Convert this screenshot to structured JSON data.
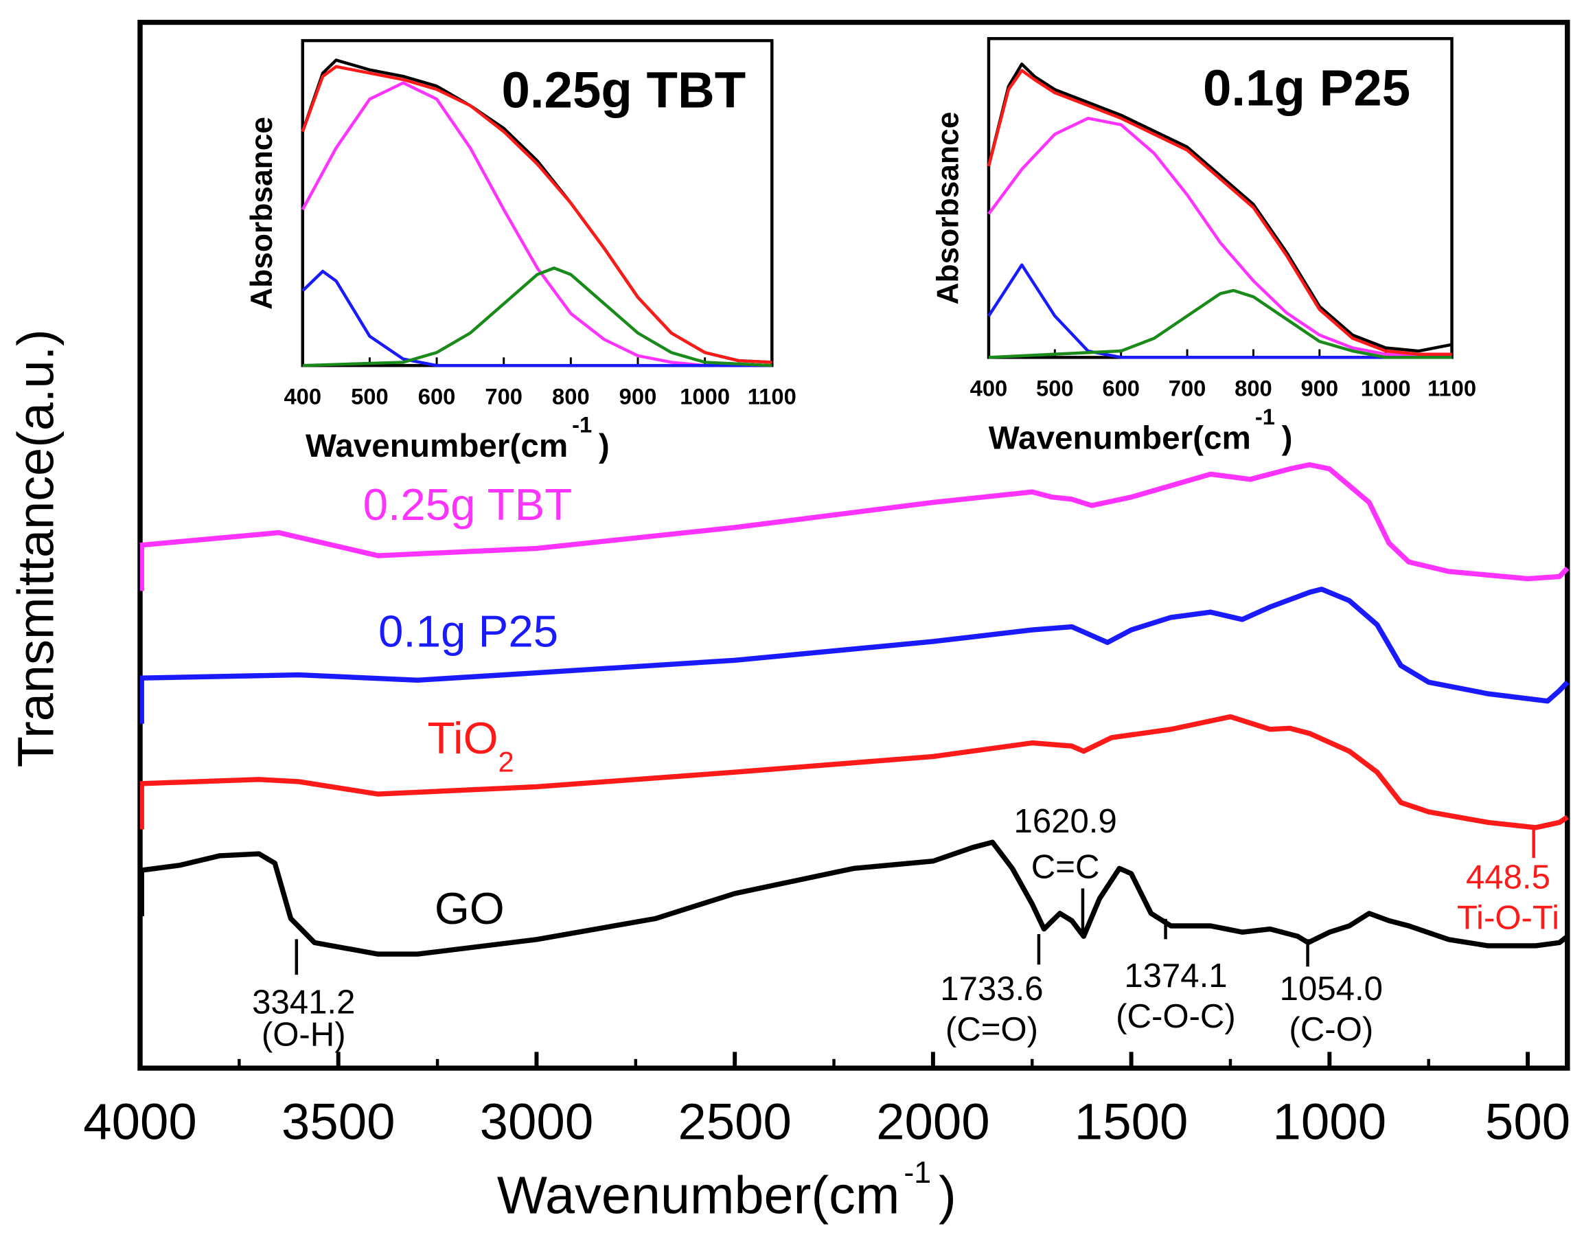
{
  "chart_data": [
    {
      "type": "line",
      "xlabel": "Wavenumber(cm",
      "xlabel_sup": "-1",
      "xlabel_close": ")",
      "ylabel": "Transmittance(a.u.)",
      "xlim": [
        4000,
        400
      ],
      "ylim": [
        0,
        100
      ],
      "x_reversed": true,
      "grid": false,
      "xticks": [
        4000,
        3500,
        3000,
        2500,
        2000,
        1500,
        1000,
        500
      ],
      "series": [
        {
          "name": "0.25g TBT",
          "color": "#ff33ff",
          "x": [
            4000,
            3650,
            3400,
            3000,
            2500,
            2000,
            1750,
            1700,
            1650,
            1600,
            1500,
            1400,
            1300,
            1200,
            1100,
            1050,
            1000,
            900,
            850,
            800,
            700,
            500,
            420,
            400
          ],
          "y": [
            50.0,
            51.2,
            49.0,
            49.7,
            51.7,
            54.1,
            55.1,
            54.6,
            54.4,
            53.8,
            54.6,
            55.7,
            56.8,
            56.3,
            57.3,
            57.7,
            57.3,
            54.1,
            50.2,
            48.4,
            47.5,
            46.8,
            47.0,
            47.8
          ]
        },
        {
          "name": "0.1g P25",
          "color": "#1a1aff",
          "x": [
            4000,
            3600,
            3300,
            3000,
            2500,
            2000,
            1750,
            1650,
            1560,
            1500,
            1400,
            1300,
            1220,
            1150,
            1050,
            1020,
            950,
            880,
            820,
            750,
            600,
            450,
            420,
            400
          ],
          "y": [
            37.3,
            37.6,
            37.1,
            37.8,
            39.0,
            40.8,
            41.9,
            42.2,
            40.7,
            41.9,
            43.1,
            43.6,
            42.9,
            44.1,
            45.5,
            45.8,
            44.7,
            42.4,
            38.5,
            36.9,
            35.8,
            35.1,
            36.1,
            36.9
          ]
        },
        {
          "name": "TiO",
          "name_sub": "2",
          "color": "#ff1a1a",
          "x": [
            4000,
            3700,
            3600,
            3400,
            3000,
            2500,
            2000,
            1750,
            1650,
            1620,
            1550,
            1400,
            1250,
            1150,
            1100,
            1050,
            950,
            880,
            820,
            750,
            600,
            480,
            420,
            400
          ],
          "y": [
            27.2,
            27.6,
            27.4,
            26.2,
            26.9,
            28.3,
            29.8,
            31.1,
            30.8,
            30.3,
            31.6,
            32.4,
            33.6,
            32.4,
            32.5,
            32.0,
            30.3,
            28.3,
            25.4,
            24.5,
            23.5,
            23.0,
            23.5,
            24.0
          ]
        },
        {
          "name": "GO",
          "color": "#000000",
          "x": [
            4000,
            3900,
            3800,
            3700,
            3660,
            3620,
            3560,
            3400,
            3300,
            3000,
            2700,
            2500,
            2200,
            2000,
            1900,
            1850,
            1800,
            1750,
            1720,
            1680,
            1650,
            1620,
            1580,
            1530,
            1500,
            1450,
            1400,
            1300,
            1220,
            1150,
            1080,
            1054,
            1000,
            950,
            900,
            850,
            800,
            700,
            600,
            480,
            420,
            400
          ],
          "y": [
            18.9,
            19.4,
            20.3,
            20.5,
            19.6,
            14.3,
            12.0,
            10.9,
            10.9,
            12.3,
            14.3,
            16.7,
            19.1,
            19.8,
            21.1,
            21.6,
            19.1,
            15.7,
            13.3,
            14.8,
            14.1,
            12.6,
            16.2,
            19.1,
            18.6,
            14.8,
            13.6,
            13.6,
            13.0,
            13.3,
            12.6,
            12.0,
            13.0,
            13.6,
            14.8,
            14.1,
            13.6,
            12.3,
            11.7,
            11.7,
            12.0,
            12.6
          ]
        }
      ],
      "annotations": [
        {
          "value": "3341.2",
          "group": "(O-H)",
          "color": "#000000"
        },
        {
          "value": "1733.6",
          "group": "(C=O)",
          "color": "#000000"
        },
        {
          "value": "1620.9",
          "group": "C=C",
          "color": "#000000"
        },
        {
          "value": "1374.1",
          "group": "(C-O-C)",
          "color": "#000000"
        },
        {
          "value": "1054.0",
          "group": "(C-O)",
          "color": "#000000"
        },
        {
          "value": "448.5",
          "group": "Ti-O-Ti",
          "color": "#ff1a1a"
        }
      ]
    },
    {
      "type": "line",
      "title": "0.25g TBT",
      "xlabel": "Wavenumber(cm",
      "xlabel_sup": "-1",
      "xlabel_close": ")",
      "ylabel": "Absorbsance",
      "xlim": [
        400,
        1100
      ],
      "ylim": [
        0,
        1
      ],
      "xticks": [
        400,
        500,
        600,
        700,
        800,
        900,
        1000,
        1100
      ],
      "series": [
        {
          "color": "#000000",
          "x": [
            400,
            430,
            450,
            500,
            550,
            600,
            650,
            700,
            750,
            800,
            850,
            900,
            950,
            1000,
            1050,
            1100
          ],
          "y": [
            0.72,
            0.9,
            0.94,
            0.91,
            0.89,
            0.86,
            0.8,
            0.73,
            0.63,
            0.5,
            0.36,
            0.21,
            0.1,
            0.04,
            0.015,
            0.01
          ]
        },
        {
          "color": "#ff33ff",
          "x": [
            400,
            450,
            500,
            550,
            600,
            650,
            700,
            750,
            800,
            850,
            900,
            950,
            1000,
            1100
          ],
          "y": [
            0.48,
            0.67,
            0.82,
            0.87,
            0.82,
            0.67,
            0.48,
            0.3,
            0.16,
            0.08,
            0.03,
            0.01,
            0.0,
            0.0
          ]
        },
        {
          "color": "#1a1aff",
          "x": [
            400,
            430,
            450,
            500,
            550,
            600,
            1100
          ],
          "y": [
            0.23,
            0.29,
            0.26,
            0.09,
            0.02,
            0.0,
            0.0
          ]
        },
        {
          "color": "#1a8a1a",
          "x": [
            400,
            550,
            600,
            650,
            700,
            750,
            775,
            800,
            850,
            900,
            950,
            1000,
            1100
          ],
          "y": [
            0.0,
            0.01,
            0.04,
            0.1,
            0.19,
            0.28,
            0.3,
            0.28,
            0.19,
            0.1,
            0.04,
            0.01,
            0.0
          ]
        },
        {
          "color": "#ff1a1a",
          "x": [
            400,
            430,
            450,
            500,
            550,
            600,
            650,
            700,
            750,
            800,
            850,
            900,
            950,
            1000,
            1050,
            1100
          ],
          "y": [
            0.72,
            0.89,
            0.92,
            0.9,
            0.88,
            0.85,
            0.8,
            0.72,
            0.62,
            0.5,
            0.36,
            0.21,
            0.1,
            0.04,
            0.015,
            0.01
          ]
        }
      ]
    },
    {
      "type": "line",
      "title": "0.1g P25",
      "xlabel": "Wavenumber(cm",
      "xlabel_sup": "-1",
      "xlabel_close": ")",
      "ylabel": "Absorbsance",
      "xlim": [
        400,
        1100
      ],
      "ylim": [
        0,
        1
      ],
      "xticks": [
        400,
        500,
        600,
        700,
        800,
        900,
        1000,
        1100
      ],
      "series": [
        {
          "color": "#000000",
          "x": [
            400,
            430,
            450,
            470,
            500,
            550,
            600,
            700,
            800,
            850,
            900,
            950,
            1000,
            1050,
            1100
          ],
          "y": [
            0.6,
            0.85,
            0.92,
            0.88,
            0.84,
            0.8,
            0.76,
            0.66,
            0.48,
            0.33,
            0.16,
            0.07,
            0.03,
            0.02,
            0.04
          ]
        },
        {
          "color": "#ff33ff",
          "x": [
            400,
            450,
            500,
            550,
            600,
            650,
            700,
            750,
            800,
            850,
            900,
            950,
            1000,
            1100
          ],
          "y": [
            0.45,
            0.59,
            0.7,
            0.75,
            0.73,
            0.64,
            0.51,
            0.36,
            0.24,
            0.14,
            0.07,
            0.03,
            0.01,
            0.0
          ]
        },
        {
          "color": "#1a1aff",
          "x": [
            400,
            450,
            500,
            550,
            600,
            1100
          ],
          "y": [
            0.13,
            0.29,
            0.13,
            0.02,
            0.0,
            0.0
          ]
        },
        {
          "color": "#1a8a1a",
          "x": [
            400,
            600,
            650,
            700,
            750,
            770,
            800,
            850,
            900,
            950,
            1000,
            1100
          ],
          "y": [
            0.0,
            0.02,
            0.06,
            0.13,
            0.2,
            0.21,
            0.19,
            0.12,
            0.05,
            0.02,
            0.0,
            0.0
          ]
        },
        {
          "color": "#ff1a1a",
          "x": [
            400,
            430,
            450,
            470,
            500,
            550,
            600,
            700,
            800,
            850,
            900,
            950,
            1000,
            1050,
            1100
          ],
          "y": [
            0.6,
            0.84,
            0.9,
            0.87,
            0.83,
            0.79,
            0.75,
            0.65,
            0.47,
            0.32,
            0.15,
            0.06,
            0.02,
            0.01,
            0.01
          ]
        }
      ]
    }
  ]
}
